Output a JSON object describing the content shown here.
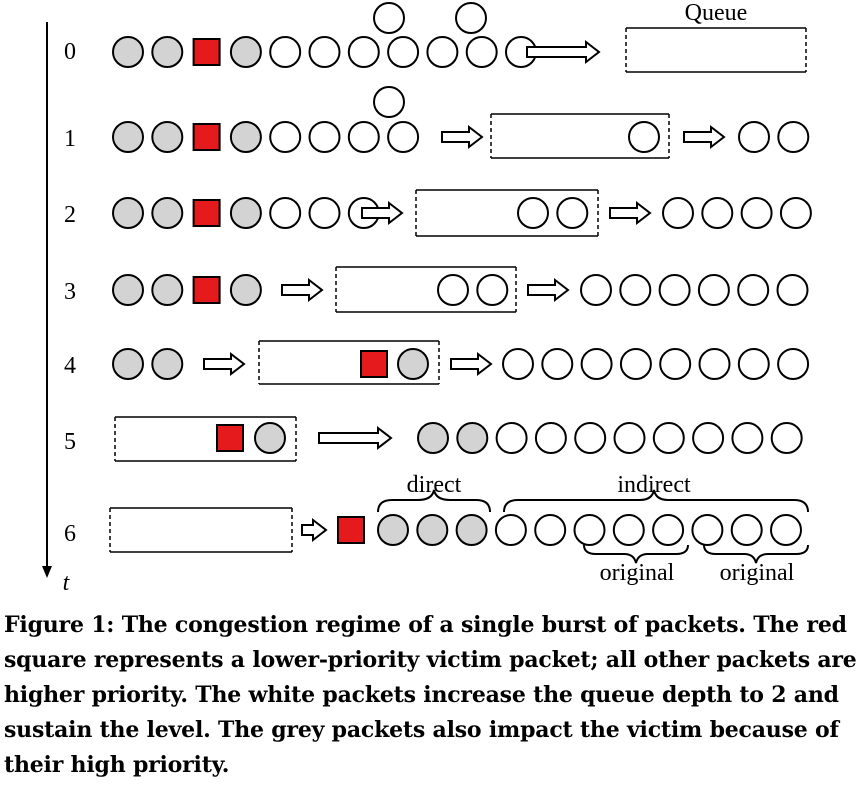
{
  "figure": {
    "time_axis_label": "t",
    "queue_label": "Queue",
    "direct_label": "direct",
    "indirect_label": "indirect",
    "original_label_1": "original",
    "original_label_2": "original",
    "rows": [
      {
        "t": "0",
        "label": "0"
      },
      {
        "t": "1",
        "label": "1"
      },
      {
        "t": "2",
        "label": "2"
      },
      {
        "t": "3",
        "label": "3"
      },
      {
        "t": "4",
        "label": "4"
      },
      {
        "t": "5",
        "label": "5"
      },
      {
        "t": "6",
        "label": "6"
      }
    ],
    "colors": {
      "grey_packet": "#d3d3d3",
      "white_packet": "#ffffff",
      "victim_packet": "#e41a1c",
      "stroke": "#000000"
    }
  },
  "caption": {
    "text": "Figure 1: The congestion regime of a single burst of packets. The red square represents a lower-priority victim packet; all other packets are higher priority. The white packets increase the queue depth to 2 and sustain the level. The grey packets also impact the victim because of their high priority."
  }
}
